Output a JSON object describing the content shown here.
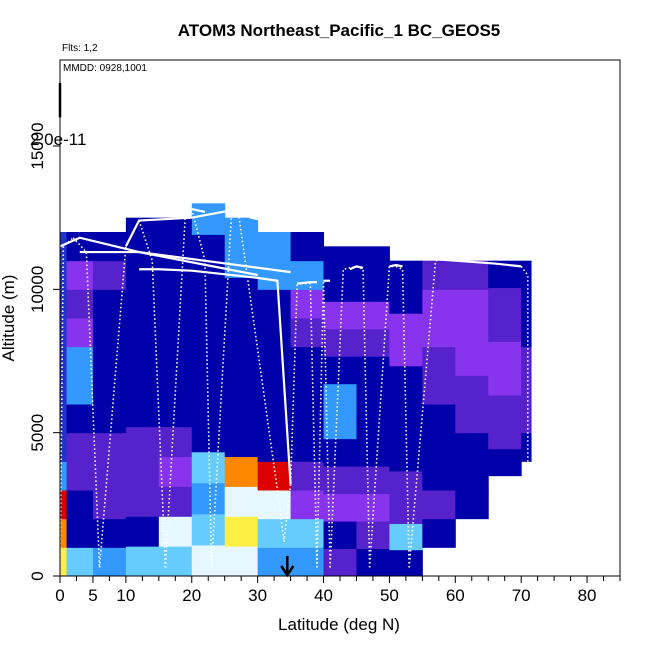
{
  "chart_data": {
    "type": "heatmap",
    "title": "ATOM3 Northeast_Pacific_1 BC_GEOS5",
    "annotations": {
      "flights": "Flts: 1,2",
      "dates": "MMDD: 0928,1001",
      "scale_marker": "2.0e-11"
    },
    "xlabel": "Latitude (deg N)",
    "ylabel": "Altitude (m)",
    "xlim": [
      0,
      85
    ],
    "ylim": [
      0,
      18000
    ],
    "x_ticks": [
      0,
      5,
      10,
      20,
      30,
      40,
      50,
      60,
      70,
      80
    ],
    "x_minor_ticks": [
      2.5,
      7.5,
      12.5,
      15,
      17.5,
      22.5,
      25,
      27.5,
      32.5,
      35,
      37.5,
      42.5,
      45,
      47.5,
      52.5,
      55,
      57.5,
      62.5,
      65,
      67.5,
      72.5,
      75,
      77.5,
      82.5,
      85
    ],
    "y_ticks": [
      0,
      5000,
      10000,
      15000
    ],
    "colormap": [
      "#1a1aff",
      "#2233cc",
      "#0000aa",
      "#5522cc",
      "#8833ee",
      "#3399ff",
      "#66ccff",
      "#e6f7ff",
      "#ffee44",
      "#ff8800",
      "#dd0000"
    ],
    "curtain_columns": [
      {
        "x": [
          0,
          1
        ],
        "y": [
          0,
          12000
        ],
        "levels": [
          8,
          9,
          10,
          5,
          1,
          1,
          1,
          1,
          1,
          1,
          1,
          1
        ]
      },
      {
        "x": [
          1,
          5
        ],
        "y": [
          0,
          12000
        ],
        "levels": [
          6,
          2,
          2,
          3,
          3,
          2,
          5,
          5,
          4,
          3,
          4,
          2
        ]
      },
      {
        "x": [
          5,
          10
        ],
        "y": [
          0,
          12000
        ],
        "levels": [
          5,
          2,
          3,
          3,
          3,
          2,
          2,
          2,
          2,
          2,
          3,
          2
        ]
      },
      {
        "x": [
          10,
          15
        ],
        "y": [
          0,
          12500
        ],
        "levels": [
          6,
          2,
          3,
          3,
          3,
          2,
          2,
          2,
          2,
          2,
          2,
          2
        ]
      },
      {
        "x": [
          15,
          20
        ],
        "y": [
          0,
          12500
        ],
        "levels": [
          6,
          7,
          3,
          4,
          3,
          2,
          2,
          2,
          2,
          2,
          2,
          2
        ]
      },
      {
        "x": [
          20,
          25
        ],
        "y": [
          0,
          13000
        ],
        "levels": [
          7,
          6,
          5,
          6,
          2,
          2,
          2,
          2,
          2,
          2,
          2,
          5
        ]
      },
      {
        "x": [
          25,
          30
        ],
        "y": [
          0,
          12500
        ],
        "levels": [
          7,
          8,
          7,
          9,
          2,
          2,
          2,
          2,
          2,
          2,
          5,
          5
        ]
      },
      {
        "x": [
          30,
          35
        ],
        "y": [
          0,
          12000
        ],
        "levels": [
          5,
          6,
          7,
          10,
          2,
          2,
          2,
          2,
          2,
          2,
          5,
          5
        ]
      },
      {
        "x": [
          35,
          40
        ],
        "y": [
          0,
          12000
        ],
        "levels": [
          5,
          6,
          4,
          3,
          2,
          2,
          2,
          2,
          3,
          4,
          5,
          2
        ]
      },
      {
        "x": [
          40,
          45
        ],
        "y": [
          0,
          11500
        ],
        "levels": [
          3,
          2,
          4,
          3,
          2,
          5,
          5,
          2,
          3,
          4,
          2,
          2
        ]
      },
      {
        "x": [
          45,
          50
        ],
        "y": [
          0,
          11500
        ],
        "levels": [
          2,
          3,
          4,
          3,
          2,
          2,
          2,
          2,
          3,
          4,
          2,
          2
        ]
      },
      {
        "x": [
          50,
          55
        ],
        "y": [
          0,
          11000
        ],
        "levels": [
          2,
          6,
          3,
          3,
          2,
          2,
          2,
          2,
          4,
          4,
          2,
          2
        ]
      },
      {
        "x": [
          55,
          60
        ],
        "y": [
          1000,
          11000
        ],
        "levels": [
          2,
          3,
          2,
          2,
          2,
          3,
          3,
          4,
          4,
          3
        ]
      },
      {
        "x": [
          60,
          65
        ],
        "y": [
          2000,
          11000
        ],
        "levels": [
          2,
          2,
          2,
          3,
          3,
          4,
          4,
          4,
          3
        ]
      },
      {
        "x": [
          65,
          70
        ],
        "y": [
          3500,
          11000
        ],
        "levels": [
          2,
          3,
          3,
          4,
          4,
          3,
          3,
          2
        ]
      },
      {
        "x": [
          70,
          71.5
        ],
        "y": [
          4000,
          11000
        ],
        "levels": [
          2,
          3,
          3,
          3,
          2,
          2,
          2
        ]
      }
    ],
    "flight_track_solid": [
      {
        "x": [
          0,
          3,
          12,
          30
        ],
        "y": [
          11500,
          11800,
          11300,
          10500
        ]
      },
      {
        "x": [
          3,
          12,
          35
        ],
        "y": [
          11300,
          11300,
          10600
        ]
      },
      {
        "x": [
          12,
          15,
          20,
          30,
          33,
          35
        ],
        "y": [
          10700,
          10700,
          10650,
          10400,
          10300,
          3200
        ]
      },
      {
        "x": [
          10,
          12,
          20,
          27,
          29,
          33
        ],
        "y": [
          11500,
          12400,
          12500,
          12800,
          12500,
          12300
        ]
      },
      {
        "x": [
          20,
          22
        ],
        "y": [
          12800,
          12700
        ]
      },
      {
        "x": [
          36,
          38,
          39
        ],
        "y": [
          10200,
          10250,
          10250
        ]
      },
      {
        "x": [
          40,
          41
        ],
        "y": [
          10300,
          10300
        ]
      },
      {
        "x": [
          44,
          45,
          46
        ],
        "y": [
          10700,
          10800,
          10750
        ]
      },
      {
        "x": [
          50,
          51,
          52
        ],
        "y": [
          10800,
          10850,
          10800
        ]
      },
      {
        "x": [
          57,
          60,
          66,
          70
        ],
        "y": [
          11050,
          11000,
          10900,
          10800
        ]
      }
    ],
    "flight_track_dotted": [
      {
        "x": [
          0,
          0.5,
          2
        ],
        "y": [
          0,
          11500,
          11800
        ]
      },
      {
        "x": [
          2,
          4,
          6
        ],
        "y": [
          11800,
          11300,
          300
        ]
      },
      {
        "x": [
          6,
          10,
          12
        ],
        "y": [
          300,
          11500,
          12400
        ]
      },
      {
        "x": [
          12,
          14,
          16
        ],
        "y": [
          12400,
          11000,
          300
        ]
      },
      {
        "x": [
          16,
          19,
          20
        ],
        "y": [
          300,
          12500,
          12800
        ]
      },
      {
        "x": [
          20,
          22,
          23
        ],
        "y": [
          12800,
          11000,
          300
        ]
      },
      {
        "x": [
          23,
          26,
          27
        ],
        "y": [
          300,
          12500,
          12800
        ]
      },
      {
        "x": [
          27,
          33,
          34
        ],
        "y": [
          12800,
          3000,
          1200
        ]
      },
      {
        "x": [
          34,
          35,
          36
        ],
        "y": [
          1200,
          3200,
          10200
        ]
      },
      {
        "x": [
          36,
          38,
          39
        ],
        "y": [
          10200,
          10200,
          300
        ]
      },
      {
        "x": [
          39,
          40,
          41
        ],
        "y": [
          300,
          10300,
          300
        ]
      },
      {
        "x": [
          41,
          43,
          45
        ],
        "y": [
          300,
          10700,
          10800
        ]
      },
      {
        "x": [
          45,
          46,
          47
        ],
        "y": [
          10800,
          10700,
          300
        ]
      },
      {
        "x": [
          47,
          50,
          51
        ],
        "y": [
          300,
          10800,
          10800
        ]
      },
      {
        "x": [
          51,
          52,
          53
        ],
        "y": [
          10800,
          10700,
          300
        ]
      },
      {
        "x": [
          53,
          57,
          58
        ],
        "y": [
          300,
          11000,
          11050
        ]
      },
      {
        "x": [
          70,
          71,
          71
        ],
        "y": [
          10800,
          10500,
          4000
        ]
      }
    ],
    "marker_arrow": {
      "x": 34.5,
      "y_from": 700,
      "y_to": 0
    },
    "grid": false,
    "legend": "none"
  }
}
